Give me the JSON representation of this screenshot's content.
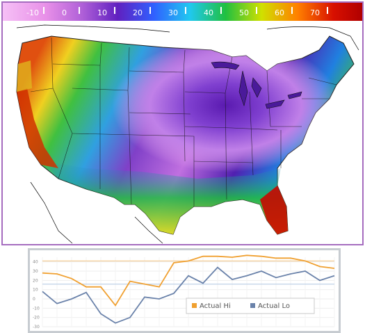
{
  "temperature_scale": {
    "labels": [
      "-10",
      "0",
      "10",
      "20",
      "30",
      "40",
      "50",
      "60",
      "70"
    ],
    "colors": [
      "#f0a0f0",
      "#b060d8",
      "#6020c0",
      "#3060ff",
      "#20c8f0",
      "#20c040",
      "#d0e000",
      "#ff8000",
      "#c00000"
    ]
  },
  "map": {
    "region": "contiguous United States with state boundaries",
    "gradient_colors": {
      "coldest": "#e890e8",
      "cold": "#7a3cc8",
      "cool": "#3070e0",
      "mild": "#20c0c0",
      "warm": "#40c040",
      "warmer": "#e0e020",
      "hot": "#ff8000",
      "hottest": "#c00000"
    }
  },
  "chart_data": {
    "type": "line",
    "y_ticks": [
      "40",
      "30",
      "20",
      "10",
      "0",
      "-10",
      "-20",
      "-30"
    ],
    "ylim": [
      -30,
      45
    ],
    "series": [
      {
        "name": "Actual Hi",
        "color": "#f0a030",
        "values": [
          28,
          27,
          22,
          13,
          13,
          -7,
          19,
          16,
          13,
          39,
          41,
          46,
          46,
          45,
          47,
          46,
          44,
          44,
          41,
          35,
          33
        ]
      },
      {
        "name": "Actual Lo",
        "color": "#6a82aa",
        "values": [
          8,
          -5,
          0,
          7,
          -16,
          -26,
          -20,
          2,
          0,
          6,
          25,
          17,
          34,
          21,
          25,
          30,
          23,
          27,
          30,
          20,
          25
        ]
      }
    ],
    "background_lines": [
      {
        "color": "#f5c88a",
        "values": [
          41,
          41,
          41,
          41,
          41,
          41,
          41,
          41,
          41,
          41,
          41,
          41,
          41,
          41,
          41,
          41,
          41,
          41,
          41,
          41,
          41
        ]
      },
      {
        "color": "#b8cbe6",
        "values": [
          16,
          16,
          16,
          16,
          16,
          16,
          16,
          16,
          16,
          16,
          16,
          16,
          16,
          16,
          16,
          16,
          16,
          16,
          16,
          16,
          16
        ]
      }
    ],
    "legend_position": "bottom-right"
  }
}
